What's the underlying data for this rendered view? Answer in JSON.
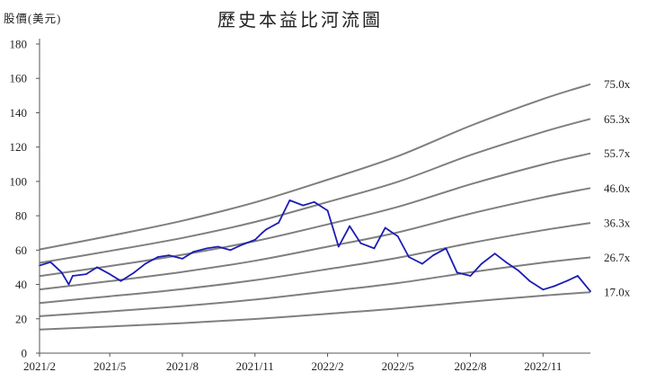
{
  "chart_data": {
    "type": "line",
    "title": "歷史本益比河流圖",
    "ylabel": "股價(美元)",
    "xlabel": "",
    "ylim": [
      0,
      180
    ],
    "yticks": [
      0,
      20,
      40,
      60,
      80,
      100,
      120,
      140,
      160,
      180
    ],
    "xlim": [
      "2021-02-01",
      "2022-12-31"
    ],
    "xticks": [
      {
        "date": "2021-02-01",
        "label": "2021/2"
      },
      {
        "date": "2021-05-01",
        "label": "2021/5"
      },
      {
        "date": "2021-08-01",
        "label": "2021/8"
      },
      {
        "date": "2021-11-01",
        "label": "2021/11"
      },
      {
        "date": "2022-02-01",
        "label": "2022/2"
      },
      {
        "date": "2022-05-01",
        "label": "2022/5"
      },
      {
        "date": "2022-08-01",
        "label": "2022/8"
      },
      {
        "date": "2022-11-01",
        "label": "2022/11"
      }
    ],
    "grid": false,
    "legend": "none",
    "colors": {
      "price": "#1c1cb4",
      "band": "#7f7f7f",
      "axis": "#555555"
    },
    "eps_x": [
      "2021-02-01",
      "2021-05-01",
      "2021-08-01",
      "2021-11-01",
      "2022-02-01",
      "2022-05-01",
      "2022-08-01",
      "2022-11-01",
      "2022-12-31"
    ],
    "bands": [
      {
        "label": "17.0x",
        "multiple": 17.0,
        "values": [
          13.7,
          15.5,
          17.5,
          19.9,
          22.9,
          26.0,
          30.0,
          33.5,
          35.5
        ]
      },
      {
        "label": "26.7x",
        "multiple": 26.7,
        "values": [
          21.5,
          24.3,
          27.4,
          31.2,
          36.0,
          40.8,
          47.1,
          52.7,
          55.8
        ]
      },
      {
        "label": "36.3x",
        "multiple": 36.3,
        "values": [
          29.2,
          33.1,
          37.3,
          42.5,
          48.9,
          55.5,
          64.1,
          71.6,
          75.8
        ]
      },
      {
        "label": "46.0x",
        "multiple": 46.0,
        "values": [
          37.1,
          41.9,
          47.3,
          53.8,
          62.0,
          70.3,
          81.2,
          90.7,
          96.1
        ]
      },
      {
        "label": "55.7x",
        "multiple": 55.7,
        "values": [
          44.9,
          50.7,
          57.3,
          65.2,
          75.0,
          85.2,
          98.3,
          109.9,
          116.3
        ]
      },
      {
        "label": "65.3x",
        "multiple": 65.3,
        "values": [
          52.6,
          59.5,
          67.1,
          76.4,
          88.0,
          99.8,
          115.3,
          128.8,
          136.4
        ]
      },
      {
        "label": "75.0x",
        "multiple": 75.0,
        "values": [
          60.4,
          68.3,
          77.1,
          87.8,
          101.0,
          114.7,
          132.4,
          148.0,
          156.6
        ]
      }
    ],
    "series": [
      {
        "name": "",
        "x": [
          "2021-02-01",
          "2021-02-15",
          "2021-03-01",
          "2021-03-10",
          "2021-03-15",
          "2021-04-01",
          "2021-04-15",
          "2021-05-01",
          "2021-05-15",
          "2021-06-01",
          "2021-06-15",
          "2021-07-01",
          "2021-07-15",
          "2021-08-01",
          "2021-08-15",
          "2021-09-01",
          "2021-09-15",
          "2021-10-01",
          "2021-10-15",
          "2021-11-01",
          "2021-11-10",
          "2021-11-15",
          "2021-12-01",
          "2021-12-15",
          "2022-01-01",
          "2022-01-15",
          "2022-02-01",
          "2022-02-15",
          "2022-03-01",
          "2022-03-15",
          "2022-04-01",
          "2022-04-15",
          "2022-05-01",
          "2022-05-15",
          "2022-06-01",
          "2022-06-15",
          "2022-07-01",
          "2022-07-15",
          "2022-08-01",
          "2022-08-15",
          "2022-09-01",
          "2022-09-15",
          "2022-10-01",
          "2022-10-15",
          "2022-11-01",
          "2022-11-15",
          "2022-12-01",
          "2022-12-15",
          "2022-12-31"
        ],
        "values": [
          51,
          53,
          47,
          40,
          45,
          46,
          50,
          46,
          42,
          47,
          52,
          56,
          57,
          55,
          59,
          61,
          62,
          60,
          63,
          66,
          70,
          72,
          76,
          89,
          86,
          88,
          83,
          62,
          74,
          64,
          61,
          73,
          68,
          56,
          52,
          57,
          61,
          47,
          45,
          52,
          58,
          53,
          48,
          42,
          37,
          39,
          42,
          45,
          36
        ]
      }
    ]
  }
}
